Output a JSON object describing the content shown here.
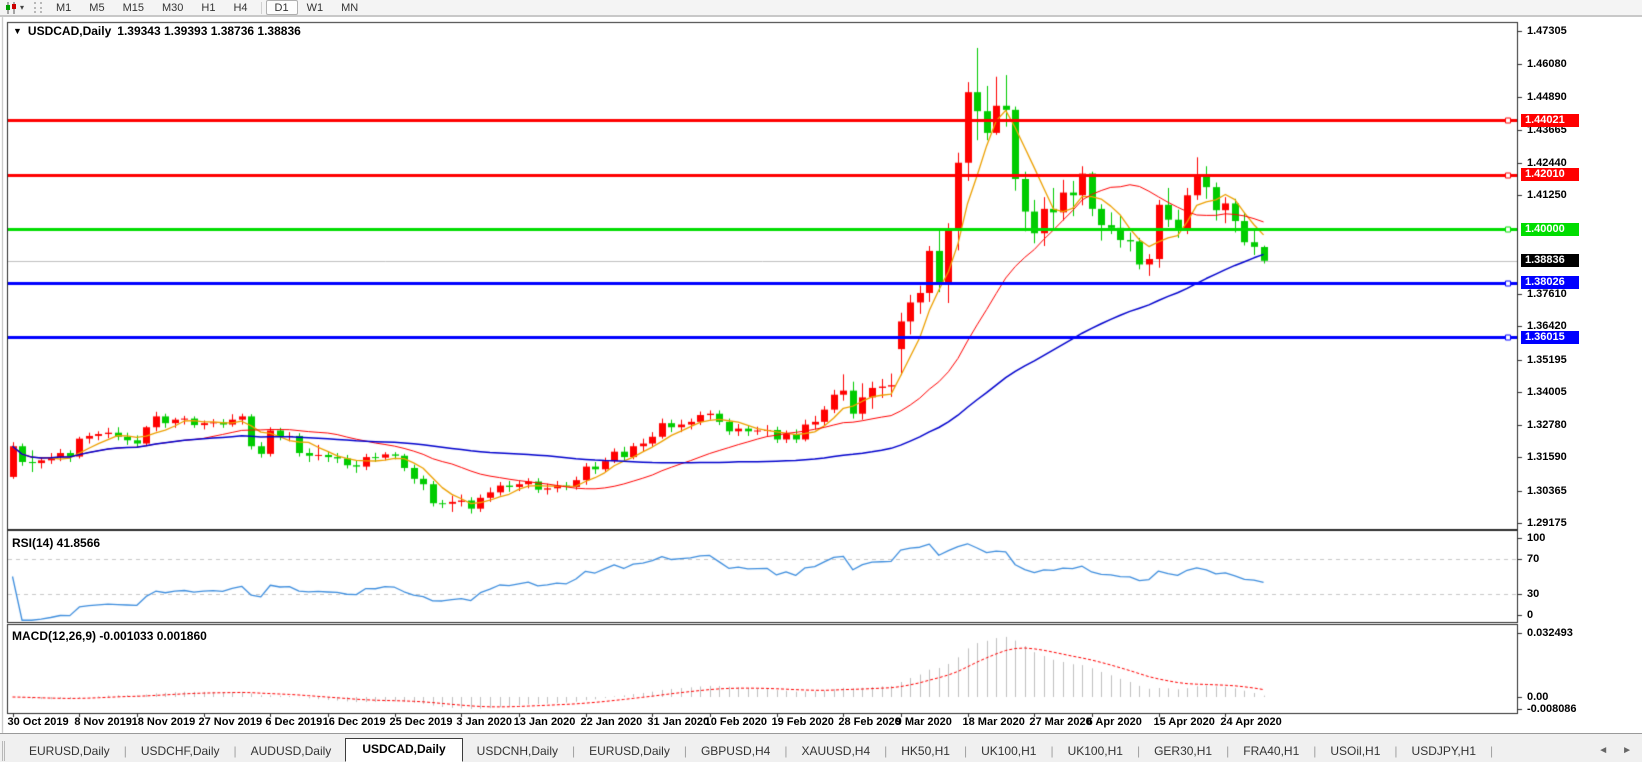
{
  "toolbar": {
    "chart_type_icon": "candlestick-chart-icon",
    "timeframes": [
      "M1",
      "M5",
      "M15",
      "M30",
      "H1",
      "H4",
      "D1",
      "W1",
      "MN"
    ],
    "active_timeframe": "D1"
  },
  "chart": {
    "symbol_timeframe": "USDCAD,Daily",
    "ohlc_text": "1.39343 1.39393 1.38736 1.38836",
    "open": "1.39343",
    "high": "1.39393",
    "low": "1.38736",
    "close": "1.38836"
  },
  "indicators": {
    "rsi": {
      "label_text": "RSI(14) 41.8566",
      "axis_values": [
        100,
        70,
        30,
        0
      ],
      "line_color": "#3e8ede",
      "level_lines": [
        70,
        30
      ]
    },
    "macd": {
      "label_text": "MACD(12,26,9) -0.001033 0.001860",
      "axis_labels": [
        "0.032493",
        "0.00",
        "-0.008086"
      ],
      "axis_values": [
        0.032493,
        0,
        -0.008086
      ],
      "histogram_color": "#c0c0c0",
      "signal_color": "#ff0000"
    }
  },
  "price_axis": {
    "ticks": [
      1.47305,
      1.4608,
      1.4489,
      1.43665,
      1.4244,
      1.4125,
      1.3761,
      1.3642,
      1.35195,
      1.34005,
      1.3278,
      1.3159,
      1.30365,
      1.29175
    ],
    "badges": [
      {
        "value": "1.44021",
        "bg": "#ff0000"
      },
      {
        "value": "1.42010",
        "bg": "#ff0000"
      },
      {
        "value": "1.40000",
        "bg": "#00dd00"
      },
      {
        "value": "1.38836",
        "bg": "#000000"
      },
      {
        "value": "1.38026",
        "bg": "#0000ff"
      },
      {
        "value": "1.36015",
        "bg": "#0000ff"
      }
    ]
  },
  "date_axis": {
    "labels": [
      "30 Oct 2019",
      "8 Nov 2019",
      "18 Nov 2019",
      "27 Nov 2019",
      "6 Dec 2019",
      "16 Dec 2019",
      "25 Dec 2019",
      "3 Jan 2020",
      "13 Jan 2020",
      "22 Jan 2020",
      "31 Jan 2020",
      "10 Feb 2020",
      "19 Feb 2020",
      "28 Feb 2020",
      "9 Mar 2020",
      "18 Mar 2020",
      "27 Mar 2020",
      "6 Apr 2020",
      "15 Apr 2020",
      "24 Apr 2020"
    ]
  },
  "tabs": {
    "items": [
      "EURUSD,Daily",
      "USDCHF,Daily",
      "AUDUSD,Daily",
      "USDCAD,Daily",
      "USDCNH,Daily",
      "EURUSD,Daily",
      "GBPUSD,H4",
      "XAUUSD,H4",
      "HK50,H1",
      "UK100,H1",
      "UK100,H1",
      "GER30,H1",
      "FRA40,H1",
      "USOil,H1",
      "USDJPY,H1"
    ],
    "active_index": 3,
    "scroll_left": "◄",
    "scroll_right": "►"
  },
  "chart_data": {
    "type": "candlestick",
    "symbol": "USDCAD",
    "timeframe": "Daily",
    "ylim": [
      1.2895,
      1.476
    ],
    "up_color": "#ff0000",
    "down_color": "#00cc00",
    "current_price": 1.38836,
    "current_price_line_color": "#c0c0c0",
    "horizontal_levels": [
      {
        "price": 1.44021,
        "color": "#ff0000",
        "width": 3
      },
      {
        "price": 1.4201,
        "color": "#ff0000",
        "width": 3
      },
      {
        "price": 1.4,
        "color": "#00dd00",
        "width": 3
      },
      {
        "price": 1.38026,
        "color": "#0000ff",
        "width": 3
      },
      {
        "price": 1.36015,
        "color": "#0000ff",
        "width": 3
      }
    ],
    "moving_averages": [
      {
        "period": 5,
        "color": "#eda000",
        "width": 1.3
      },
      {
        "period": 20,
        "color": "#ff0000",
        "width": 1
      },
      {
        "period": 50,
        "color": "#0000cd",
        "width": 1.5
      }
    ],
    "rsi_period": 14,
    "macd_params": [
      12,
      26,
      9
    ],
    "dates": [
      "30 Oct 2019",
      "31 Oct 2019",
      "1 Nov 2019",
      "4 Nov 2019",
      "5 Nov 2019",
      "6 Nov 2019",
      "7 Nov 2019",
      "8 Nov 2019",
      "11 Nov 2019",
      "12 Nov 2019",
      "13 Nov 2019",
      "14 Nov 2019",
      "15 Nov 2019",
      "18 Nov 2019",
      "19 Nov 2019",
      "20 Nov 2019",
      "21 Nov 2019",
      "22 Nov 2019",
      "25 Nov 2019",
      "26 Nov 2019",
      "27 Nov 2019",
      "28 Nov 2019",
      "29 Nov 2019",
      "2 Dec 2019",
      "3 Dec 2019",
      "4 Dec 2019",
      "5 Dec 2019",
      "6 Dec 2019",
      "9 Dec 2019",
      "10 Dec 2019",
      "11 Dec 2019",
      "12 Dec 2019",
      "13 Dec 2019",
      "16 Dec 2019",
      "17 Dec 2019",
      "18 Dec 2019",
      "19 Dec 2019",
      "20 Dec 2019",
      "23 Dec 2019",
      "24 Dec 2019",
      "25 Dec 2019",
      "26 Dec 2019",
      "27 Dec 2019",
      "30 Dec 2019",
      "31 Dec 2019",
      "1 Jan 2020",
      "2 Jan 2020",
      "3 Jan 2020",
      "6 Jan 2020",
      "7 Jan 2020",
      "8 Jan 2020",
      "9 Jan 2020",
      "10 Jan 2020",
      "13 Jan 2020",
      "14 Jan 2020",
      "15 Jan 2020",
      "16 Jan 2020",
      "17 Jan 2020",
      "20 Jan 2020",
      "21 Jan 2020",
      "22 Jan 2020",
      "23 Jan 2020",
      "24 Jan 2020",
      "27 Jan 2020",
      "28 Jan 2020",
      "29 Jan 2020",
      "30 Jan 2020",
      "31 Jan 2020",
      "3 Feb 2020",
      "4 Feb 2020",
      "5 Feb 2020",
      "6 Feb 2020",
      "7 Feb 2020",
      "10 Feb 2020",
      "11 Feb 2020",
      "12 Feb 2020",
      "13 Feb 2020",
      "14 Feb 2020",
      "17 Feb 2020",
      "18 Feb 2020",
      "19 Feb 2020",
      "20 Feb 2020",
      "21 Feb 2020",
      "24 Feb 2020",
      "25 Feb 2020",
      "26 Feb 2020",
      "27 Feb 2020",
      "28 Feb 2020",
      "2 Mar 2020",
      "3 Mar 2020",
      "4 Mar 2020",
      "5 Mar 2020",
      "6 Mar 2020",
      "9 Mar 2020",
      "10 Mar 2020",
      "11 Mar 2020",
      "12 Mar 2020",
      "13 Mar 2020",
      "16 Mar 2020",
      "17 Mar 2020",
      "18 Mar 2020",
      "19 Mar 2020",
      "20 Mar 2020",
      "23 Mar 2020",
      "24 Mar 2020",
      "25 Mar 2020",
      "26 Mar 2020",
      "27 Mar 2020",
      "30 Mar 2020",
      "31 Mar 2020",
      "1 Apr 2020",
      "2 Apr 2020",
      "3 Apr 2020",
      "6 Apr 2020",
      "7 Apr 2020",
      "8 Apr 2020",
      "9 Apr 2020",
      "10 Apr 2020",
      "13 Apr 2020",
      "14 Apr 2020",
      "15 Apr 2020",
      "16 Apr 2020",
      "17 Apr 2020",
      "20 Apr 2020",
      "21 Apr 2020",
      "22 Apr 2020",
      "23 Apr 2020",
      "24 Apr 2020",
      "27 Apr 2020",
      "28 Apr 2020",
      "29 Apr 2020",
      "30 Apr 2020"
    ],
    "ohlc": [
      [
        1.3087,
        1.3215,
        1.308,
        1.32
      ],
      [
        1.32,
        1.321,
        1.3128,
        1.3142
      ],
      [
        1.3142,
        1.3185,
        1.3105,
        1.3138
      ],
      [
        1.3138,
        1.316,
        1.3118,
        1.3148
      ],
      [
        1.3148,
        1.3175,
        1.3135,
        1.316
      ],
      [
        1.316,
        1.319,
        1.3145,
        1.3175
      ],
      [
        1.3175,
        1.3185,
        1.3142,
        1.3162
      ],
      [
        1.3162,
        1.3235,
        1.3155,
        1.3228
      ],
      [
        1.3228,
        1.325,
        1.321,
        1.3238
      ],
      [
        1.3238,
        1.3255,
        1.3222,
        1.3245
      ],
      [
        1.3245,
        1.3268,
        1.323,
        1.325
      ],
      [
        1.325,
        1.327,
        1.3222,
        1.3235
      ],
      [
        1.3235,
        1.325,
        1.3205,
        1.3222
      ],
      [
        1.3222,
        1.324,
        1.3198,
        1.321
      ],
      [
        1.321,
        1.3275,
        1.3202,
        1.327
      ],
      [
        1.327,
        1.3327,
        1.3255,
        1.331
      ],
      [
        1.331,
        1.332,
        1.3268,
        1.3285
      ],
      [
        1.3285,
        1.3305,
        1.3268,
        1.3298
      ],
      [
        1.3298,
        1.3312,
        1.328,
        1.3302
      ],
      [
        1.3302,
        1.331,
        1.3268,
        1.3278
      ],
      [
        1.3278,
        1.3295,
        1.3262,
        1.3285
      ],
      [
        1.3285,
        1.33,
        1.327,
        1.3288
      ],
      [
        1.3288,
        1.33,
        1.3268,
        1.328
      ],
      [
        1.328,
        1.3318,
        1.3272,
        1.3298
      ],
      [
        1.3298,
        1.332,
        1.328,
        1.331
      ],
      [
        1.331,
        1.3318,
        1.3188,
        1.32
      ],
      [
        1.32,
        1.3215,
        1.3158,
        1.3172
      ],
      [
        1.3172,
        1.327,
        1.3162,
        1.3258
      ],
      [
        1.3258,
        1.3268,
        1.3222,
        1.3235
      ],
      [
        1.3235,
        1.3252,
        1.3218,
        1.3238
      ],
      [
        1.3238,
        1.3248,
        1.3162,
        1.3175
      ],
      [
        1.3175,
        1.3192,
        1.3142,
        1.3165
      ],
      [
        1.3165,
        1.3205,
        1.3148,
        1.3168
      ],
      [
        1.3168,
        1.3182,
        1.3142,
        1.316
      ],
      [
        1.316,
        1.3175,
        1.3138,
        1.3155
      ],
      [
        1.3155,
        1.3168,
        1.3118,
        1.313
      ],
      [
        1.313,
        1.3148,
        1.3102,
        1.3125
      ],
      [
        1.3125,
        1.3172,
        1.3112,
        1.316
      ],
      [
        1.316,
        1.3176,
        1.3142,
        1.3158
      ],
      [
        1.3158,
        1.3178,
        1.3148,
        1.317
      ],
      [
        1.317,
        1.3178,
        1.3152,
        1.3165
      ],
      [
        1.3165,
        1.3172,
        1.3108,
        1.312
      ],
      [
        1.312,
        1.3132,
        1.3062,
        1.308
      ],
      [
        1.308,
        1.3092,
        1.3038,
        1.306
      ],
      [
        1.306,
        1.3072,
        1.2978,
        1.299
      ],
      [
        1.299,
        1.3002,
        1.2972,
        1.2988
      ],
      [
        1.2988,
        1.3018,
        1.2958,
        1.2995
      ],
      [
        1.2995,
        1.3022,
        1.2978,
        1.3
      ],
      [
        1.3,
        1.3012,
        1.2952,
        1.297
      ],
      [
        1.297,
        1.3022,
        1.2958,
        1.301
      ],
      [
        1.301,
        1.3048,
        1.2995,
        1.303
      ],
      [
        1.303,
        1.3068,
        1.3018,
        1.3055
      ],
      [
        1.3055,
        1.3072,
        1.3032,
        1.305
      ],
      [
        1.305,
        1.3072,
        1.3035,
        1.306
      ],
      [
        1.306,
        1.3082,
        1.3045,
        1.307
      ],
      [
        1.307,
        1.3082,
        1.3028,
        1.304
      ],
      [
        1.304,
        1.3062,
        1.3022,
        1.3045
      ],
      [
        1.3045,
        1.3072,
        1.303,
        1.3055
      ],
      [
        1.3055,
        1.3068,
        1.3038,
        1.305
      ],
      [
        1.305,
        1.3088,
        1.304,
        1.3075
      ],
      [
        1.3075,
        1.3138,
        1.3058,
        1.3125
      ],
      [
        1.3125,
        1.3142,
        1.3098,
        1.3115
      ],
      [
        1.3115,
        1.3158,
        1.3105,
        1.3145
      ],
      [
        1.3145,
        1.3192,
        1.3138,
        1.318
      ],
      [
        1.318,
        1.3198,
        1.3148,
        1.316
      ],
      [
        1.316,
        1.3212,
        1.3152,
        1.32
      ],
      [
        1.32,
        1.3228,
        1.3182,
        1.321
      ],
      [
        1.321,
        1.3252,
        1.3198,
        1.3235
      ],
      [
        1.3235,
        1.3302,
        1.3228,
        1.3285
      ],
      [
        1.3285,
        1.3298,
        1.3252,
        1.327
      ],
      [
        1.327,
        1.3298,
        1.3252,
        1.328
      ],
      [
        1.328,
        1.3302,
        1.3262,
        1.329
      ],
      [
        1.329,
        1.3328,
        1.3278,
        1.3315
      ],
      [
        1.3315,
        1.3332,
        1.3298,
        1.332
      ],
      [
        1.332,
        1.3332,
        1.3278,
        1.329
      ],
      [
        1.329,
        1.3302,
        1.3242,
        1.3255
      ],
      [
        1.3255,
        1.3282,
        1.3238,
        1.3265
      ],
      [
        1.3265,
        1.3278,
        1.3238,
        1.3255
      ],
      [
        1.3255,
        1.3272,
        1.3242,
        1.3258
      ],
      [
        1.3258,
        1.3278,
        1.3238,
        1.326
      ],
      [
        1.326,
        1.3272,
        1.3212,
        1.3225
      ],
      [
        1.3225,
        1.3258,
        1.3212,
        1.3245
      ],
      [
        1.3245,
        1.3262,
        1.3212,
        1.3225
      ],
      [
        1.3225,
        1.3298,
        1.3218,
        1.328
      ],
      [
        1.328,
        1.3312,
        1.3262,
        1.329
      ],
      [
        1.329,
        1.3348,
        1.3278,
        1.3335
      ],
      [
        1.3335,
        1.3408,
        1.3322,
        1.339
      ],
      [
        1.339,
        1.3465,
        1.3368,
        1.3405
      ],
      [
        1.3405,
        1.3438,
        1.3302,
        1.332
      ],
      [
        1.332,
        1.3432,
        1.3298,
        1.338
      ],
      [
        1.338,
        1.3438,
        1.3338,
        1.3415
      ],
      [
        1.3415,
        1.3448,
        1.3378,
        1.342
      ],
      [
        1.342,
        1.3468,
        1.3382,
        1.3425
      ],
      [
        1.3558,
        1.3692,
        1.3462,
        1.366
      ],
      [
        1.366,
        1.3758,
        1.3612,
        1.373
      ],
      [
        1.373,
        1.3792,
        1.3688,
        1.3765
      ],
      [
        1.3765,
        1.3938,
        1.3732,
        1.392
      ],
      [
        1.392,
        1.3998,
        1.3768,
        1.3805
      ],
      [
        1.3805,
        1.4022,
        1.3728,
        1.3995
      ],
      [
        1.3995,
        1.4282,
        1.3922,
        1.4245
      ],
      [
        1.4245,
        1.4542,
        1.4178,
        1.4505
      ],
      [
        1.4505,
        1.4668,
        1.4328,
        1.4435
      ],
      [
        1.4435,
        1.4528,
        1.4328,
        1.4355
      ],
      [
        1.4355,
        1.4562,
        1.4348,
        1.4455
      ],
      [
        1.4455,
        1.4568,
        1.4378,
        1.444
      ],
      [
        1.444,
        1.4452,
        1.4142,
        1.4185
      ],
      [
        1.4185,
        1.4212,
        1.3992,
        1.4065
      ],
      [
        1.4065,
        1.4108,
        1.3948,
        1.3985
      ],
      [
        1.3985,
        1.4118,
        1.3938,
        1.4075
      ],
      [
        1.4075,
        1.4152,
        1.4002,
        1.4062
      ],
      [
        1.4062,
        1.4182,
        1.4032,
        1.4135
      ],
      [
        1.4135,
        1.4178,
        1.4048,
        1.4125
      ],
      [
        1.4125,
        1.4232,
        1.4088,
        1.4205
      ],
      [
        1.4205,
        1.4212,
        1.4048,
        1.4075
      ],
      [
        1.4075,
        1.4092,
        1.3958,
        1.4015
      ],
      [
        1.4015,
        1.4062,
        1.3982,
        1.4005
      ],
      [
        1.4005,
        1.4052,
        1.3932,
        1.396
      ],
      [
        1.396,
        1.3988,
        1.3918,
        1.3955
      ],
      [
        1.3955,
        1.3968,
        1.3852,
        1.387
      ],
      [
        1.387,
        1.3908,
        1.3828,
        1.389
      ],
      [
        1.389,
        1.4108,
        1.3858,
        1.409
      ],
      [
        1.409,
        1.4152,
        1.4008,
        1.4035
      ],
      [
        1.4035,
        1.4072,
        1.3968,
        1.3995
      ],
      [
        1.3995,
        1.4152,
        1.3982,
        1.4125
      ],
      [
        1.4125,
        1.4265,
        1.4108,
        1.4195
      ],
      [
        1.4195,
        1.4232,
        1.4112,
        1.4155
      ],
      [
        1.4155,
        1.4172,
        1.4032,
        1.407
      ],
      [
        1.407,
        1.4118,
        1.4022,
        1.4095
      ],
      [
        1.4095,
        1.4112,
        1.3988,
        1.403
      ],
      [
        1.403,
        1.4062,
        1.394,
        1.3952
      ],
      [
        1.3952,
        1.3998,
        1.3905,
        1.3935
      ],
      [
        1.39343,
        1.39393,
        1.38736,
        1.38836
      ]
    ]
  }
}
